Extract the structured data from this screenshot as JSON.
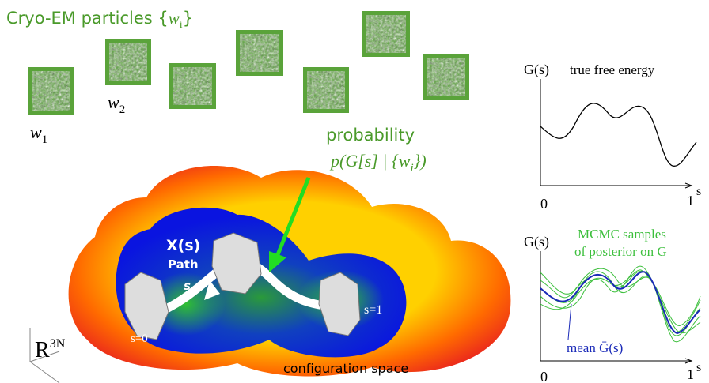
{
  "title": {
    "text": "Cryo-EM particles {",
    "var": "w",
    "sub": "i",
    "close": "}"
  },
  "particles": [
    {
      "label": "w",
      "sub": "1"
    },
    {
      "label": "w",
      "sub": "2"
    }
  ],
  "probability": {
    "line1": "probability",
    "line2": "p(G[s] | {",
    "var": "w",
    "sub": "i",
    "close": "})"
  },
  "path": {
    "point": "X(s)",
    "label": "Path",
    "s": "s",
    "start": "s=0",
    "end": "s=1"
  },
  "space": {
    "symbol": "R",
    "sup": "3N",
    "label": "configuration space"
  },
  "top_plot": {
    "y_label": "G(s)",
    "title": "true free energy",
    "x_start": "0",
    "x_end": "1",
    "x_label": "s"
  },
  "bottom_plot": {
    "y_label": "G(s)",
    "title_line1": "MCMC samples",
    "title_line2": "of posterior on G",
    "mean_label": "mean Ḡ(s)",
    "x_start": "0",
    "x_end": "1",
    "x_label": "s"
  }
}
